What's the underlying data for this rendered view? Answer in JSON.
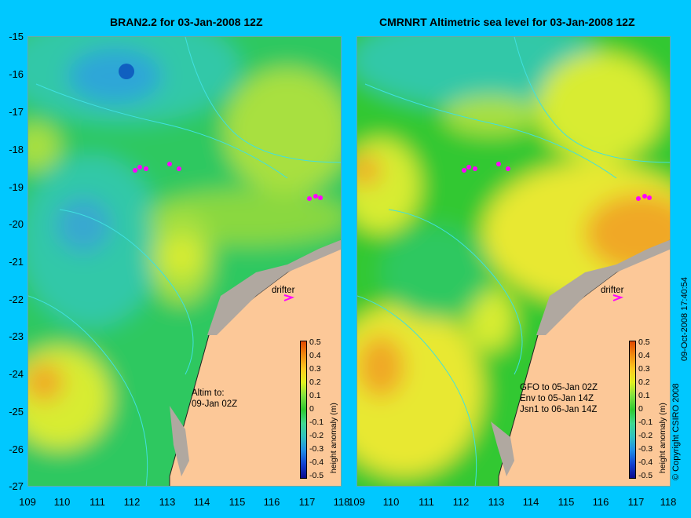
{
  "left_panel": {
    "title": "BRAN2.2 for 03-Jan-2008 12Z",
    "drifter_label": "drifter",
    "note_lines": [
      "Altim to:",
      "09-Jan 02Z"
    ]
  },
  "right_panel": {
    "title": "CMRNRT Altimetric sea level  for 03-Jan-2008 12Z",
    "drifter_label": "drifter",
    "note_lines": [
      "GFO to 05-Jan 02Z",
      "Env to 05-Jan 14Z",
      "Jsn1 to 06-Jan 14Z"
    ]
  },
  "axes": {
    "y_ticks": [
      "-15",
      "-16",
      "-17",
      "-18",
      "-19",
      "-20",
      "-21",
      "-22",
      "-23",
      "-24",
      "-25",
      "-26",
      "-27"
    ],
    "x_ticks": [
      "109",
      "110",
      "111",
      "112",
      "113",
      "114",
      "115",
      "116",
      "117",
      "118"
    ],
    "lat_range": [
      -27,
      -15
    ],
    "lon_range": [
      109,
      118
    ]
  },
  "colorbar": {
    "label": "height anomaly (m)",
    "ticks": [
      "0.5",
      "0.4",
      "0.3",
      "0.2",
      "0.1",
      "0",
      "-0.1",
      "-0.2",
      "-0.3",
      "-0.4",
      "-0.5"
    ],
    "range": [
      -0.5,
      0.5
    ],
    "colors": [
      "#0a0a8c",
      "#1040d0",
      "#1e8ce6",
      "#30c0c0",
      "#40d890",
      "#30c830",
      "#80e040",
      "#e0f020",
      "#ffc820",
      "#f08c10",
      "#e04800"
    ]
  },
  "side_text": {
    "copyright": "© Copyright CSIRO 2008",
    "timestamp": "09-Oct-2008 17:40:54"
  },
  "colors": {
    "background": "#00c8ff",
    "land": "#fcc898",
    "drifter_marker": "#ff00ff"
  }
}
